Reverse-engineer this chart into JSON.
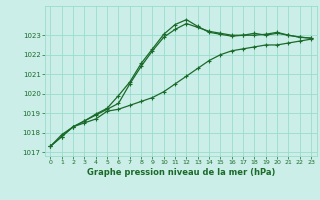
{
  "xlabel": "Graphe pression niveau de la mer (hPa)",
  "xlim": [
    -0.5,
    23.5
  ],
  "ylim": [
    1016.8,
    1024.5
  ],
  "yticks": [
    1017,
    1018,
    1019,
    1020,
    1021,
    1022,
    1023
  ],
  "xticks": [
    0,
    1,
    2,
    3,
    4,
    5,
    6,
    7,
    8,
    9,
    10,
    11,
    12,
    13,
    14,
    15,
    16,
    17,
    18,
    19,
    20,
    21,
    22,
    23
  ],
  "bg_color": "#cceee8",
  "grid_color": "#99ddcc",
  "line_color": "#1a6b2a",
  "series1": [
    1017.3,
    1017.8,
    1018.3,
    1018.5,
    1018.7,
    1019.1,
    1019.2,
    1019.4,
    1019.6,
    1019.8,
    1020.1,
    1020.5,
    1020.9,
    1021.3,
    1021.7,
    1022.0,
    1022.2,
    1022.3,
    1022.4,
    1022.5,
    1022.5,
    1022.6,
    1022.7,
    1022.8
  ],
  "series2": [
    1017.3,
    1017.8,
    1018.3,
    1018.6,
    1018.9,
    1019.2,
    1019.5,
    1020.5,
    1021.4,
    1022.2,
    1022.9,
    1023.3,
    1023.6,
    1023.4,
    1023.2,
    1023.1,
    1023.0,
    1023.0,
    1023.1,
    1023.0,
    1023.1,
    1023.0,
    1022.9,
    1022.85
  ],
  "series3": [
    1017.3,
    1017.9,
    1018.3,
    1018.6,
    1018.95,
    1019.25,
    1019.9,
    1020.6,
    1021.55,
    1022.3,
    1023.05,
    1023.55,
    1023.8,
    1023.45,
    1023.15,
    1023.05,
    1022.95,
    1023.0,
    1023.0,
    1023.05,
    1023.15,
    1023.0,
    1022.9,
    1022.85
  ],
  "marker": "+",
  "markersize": 3,
  "linewidth": 0.9
}
